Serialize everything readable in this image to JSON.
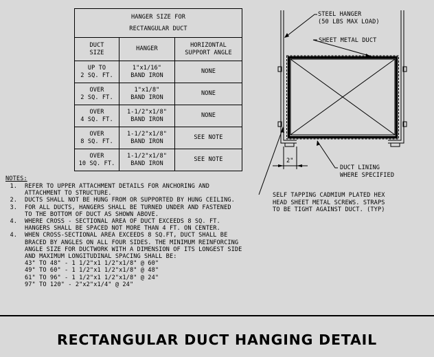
{
  "table": {
    "title_line1": "HANGER SIZE FOR",
    "title_line2": "RECTANGULAR DUCT",
    "headers": [
      {
        "line1": "DUCT",
        "line2": "SIZE"
      },
      {
        "line1": "HANGER",
        "line2": ""
      },
      {
        "line1": "HORIZONTAL",
        "line2": "SUPPORT ANGLE"
      }
    ],
    "rows": [
      {
        "size1": "UP TO",
        "size2": "2 SQ. FT.",
        "hanger1": "1\"x1/16\"",
        "hanger2": "BAND IRON",
        "angle": "NONE"
      },
      {
        "size1": "OVER",
        "size2": "2 SQ. FT.",
        "hanger1": "1\"x1/8\"",
        "hanger2": "BAND IRON",
        "angle": "NONE"
      },
      {
        "size1": "OVER",
        "size2": "4 SQ. FT.",
        "hanger1": "1-1/2\"x1/8\"",
        "hanger2": "BAND IRON",
        "angle": "NONE"
      },
      {
        "size1": "OVER",
        "size2": "8 SQ. FT.",
        "hanger1": "1-1/2\"x1/8\"",
        "hanger2": "BAND IRON",
        "angle": "SEE NOTE"
      },
      {
        "size1": "OVER",
        "size2": "10 SQ. FT.",
        "hanger1": "1-1/2\"x1/8\"",
        "hanger2": "BAND IRON",
        "angle": "SEE NOTE"
      }
    ]
  },
  "notes": {
    "title": "NOTES:",
    "items": [
      {
        "num": "1.",
        "text": "REFER TO UPPER ATTACHMENT DETAILS FOR ANCHORING AND\nATTACHMENT TO STRUCTURE."
      },
      {
        "num": "2.",
        "text": "DUCTS SHALL NOT BE HUNG FROM OR SUPPORTED BY HUNG CEILING."
      },
      {
        "num": "3.",
        "text": "FOR ALL DUCTS, HANGERS SHALL BE TURNED UNDER AND FASTENED\nTO THE BOTTOM OF DUCT AS SHOWN ABOVE."
      },
      {
        "num": "4.",
        "text": "WHERE CROSS - SECTIONAL AREA OF DUCT EXCEEDS 8 SQ. FT.\nHANGERS SHALL BE SPACED NOT MORE THAN 4 FT. ON CENTER."
      },
      {
        "num": "4.",
        "text": "WHEN CROSS-SECTIONAL AREA EXCEEDS 8 SQ.FT, DUCT SHALL BE\nBRACED BY ANGLES ON ALL FOUR SIDES. THE MINIMUM REINFORCING\nANGLE SIZE FOR DUCTWORK WITH A DIMENSION OF ITS LONGEST SIDE\nAND MAXIMUM LONGITUDINAL SPACING SHALL BE:"
      }
    ],
    "spacing": [
      "43\" TO 48\" - 1 1/2\"x1 1/2\"x1/8\" @ 60\"",
      "49\" TO 60\" - 1 1/2\"x1 1/2\"x1/8\" @ 48\"",
      "61\" TO 96\" - 1 1/2\"x1 1/2\"x1/8\" @ 24\"",
      "97\" TO 120\" - 2\"x2\"x1/4\" @ 24\""
    ]
  },
  "diagram": {
    "steel_hanger": "STEEL HANGER\n(50 LBS MAX LOAD)",
    "sheet_metal_duct": "SHEET METAL DUCT",
    "dimension": "2\"",
    "duct_lining": "DUCT LINING\nWHERE SPECIFIED",
    "screws": "SELF TAPPING CADMIUM PLATED HEX\nHEAD SHEET METAL SCREWS. STRAPS\nTO BE TIGHT AGAINST DUCT. (TYP)"
  },
  "footer": {
    "title": "RECTANGULAR DUCT HANGING DETAIL"
  },
  "colors": {
    "background": "#d9d9d9",
    "ink": "#000000"
  }
}
